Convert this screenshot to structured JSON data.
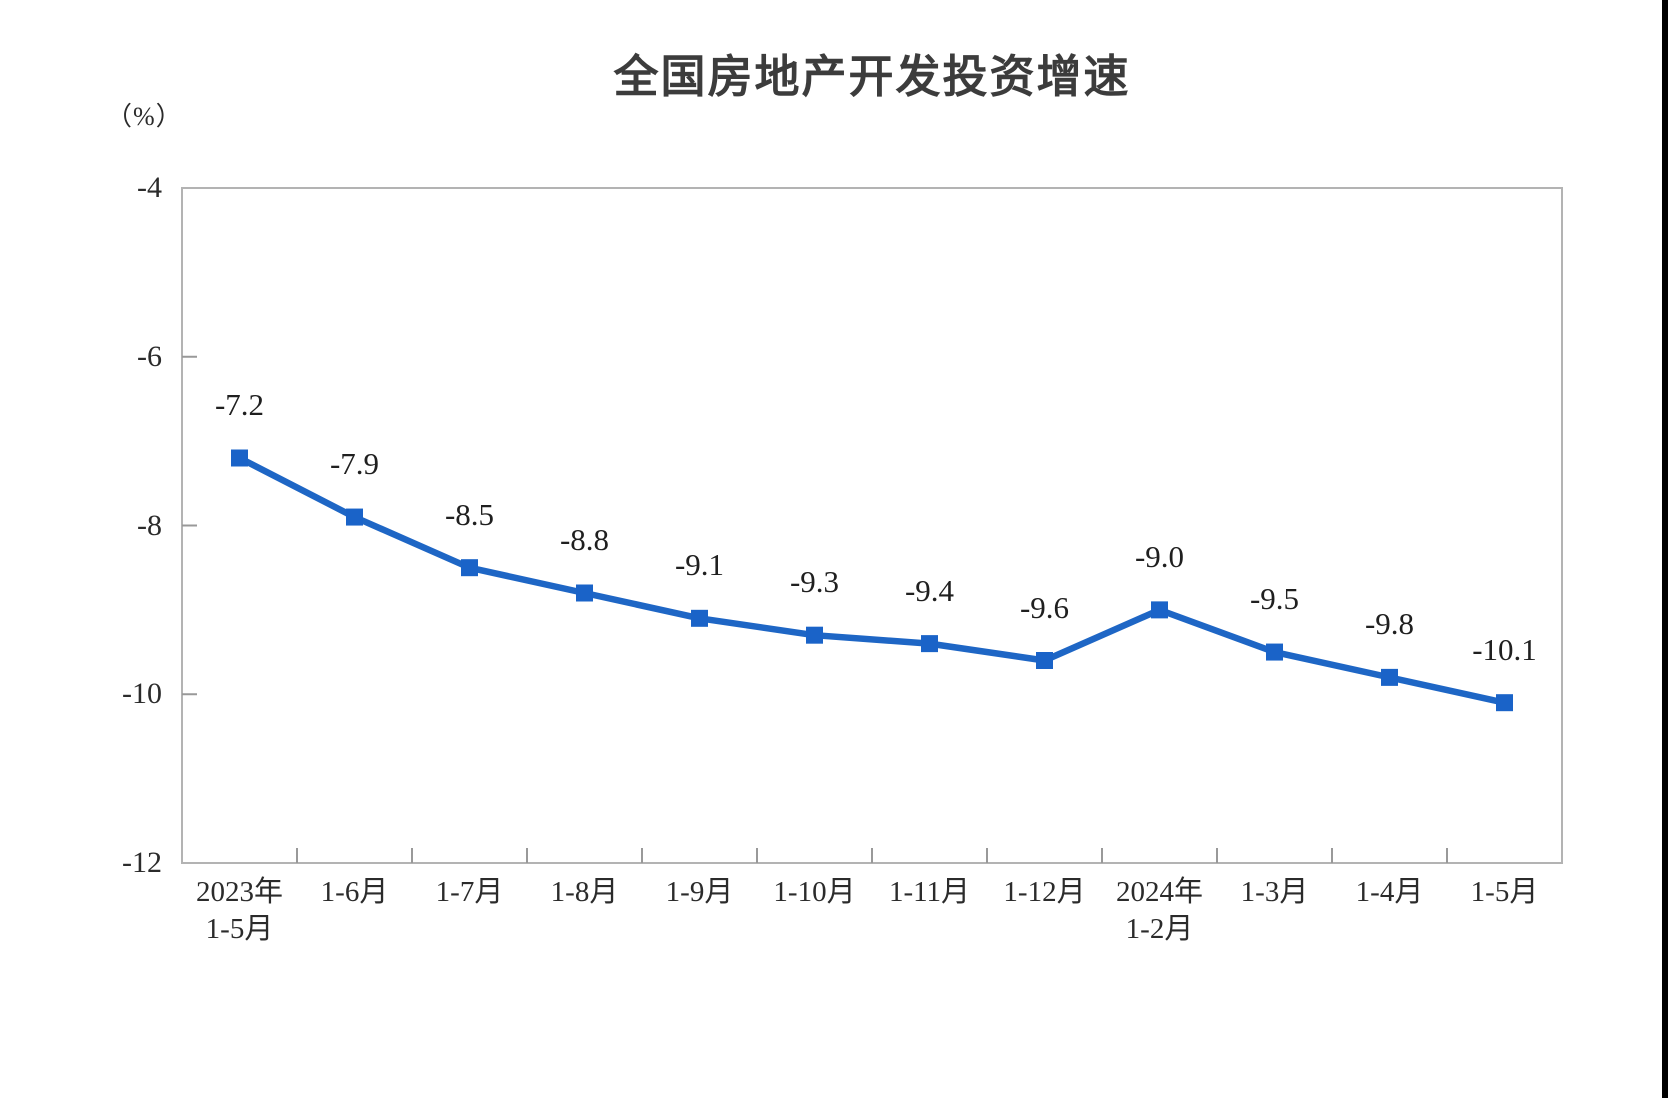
{
  "page": {
    "background": "#ffffff",
    "right_edge_bar_color": "#000000"
  },
  "chart": {
    "title": "全国房地产开发投资增速",
    "unit_label": "（%）",
    "line_color": "#1e66c5",
    "marker_color": "#1a63c8",
    "axis_border_color": "#b3b3b3",
    "tick_color": "#999999",
    "label_color": "#1f1f1f",
    "axis_text_color": "#2b2b2b"
  },
  "chart_data": {
    "type": "line",
    "title": "全国房地产开发投资增速",
    "ylabel": "（%）",
    "categories": [
      [
        "2023年",
        "1-5月"
      ],
      [
        "1-6月",
        ""
      ],
      [
        "1-7月",
        ""
      ],
      [
        "1-8月",
        ""
      ],
      [
        "1-9月",
        ""
      ],
      [
        "1-10月",
        ""
      ],
      [
        "1-11月",
        ""
      ],
      [
        "1-12月",
        ""
      ],
      [
        "2024年",
        "1-2月"
      ],
      [
        "1-3月",
        ""
      ],
      [
        "1-4月",
        ""
      ],
      [
        "1-5月",
        ""
      ]
    ],
    "values": [
      -7.2,
      -7.9,
      -8.5,
      -8.8,
      -9.1,
      -9.3,
      -9.4,
      -9.6,
      -9.0,
      -9.5,
      -9.8,
      -10.1
    ],
    "data_labels": [
      "-7.2",
      "-7.9",
      "-8.5",
      "-8.8",
      "-9.1",
      "-9.3",
      "-9.4",
      "-9.6",
      "-9.0",
      "-9.5",
      "-9.8",
      "-10.1"
    ],
    "ylim": [
      -12,
      -4
    ],
    "yticks": [
      -4,
      -6,
      -8,
      -10,
      -12
    ],
    "grid": false,
    "legend": "none",
    "marker": "square"
  }
}
